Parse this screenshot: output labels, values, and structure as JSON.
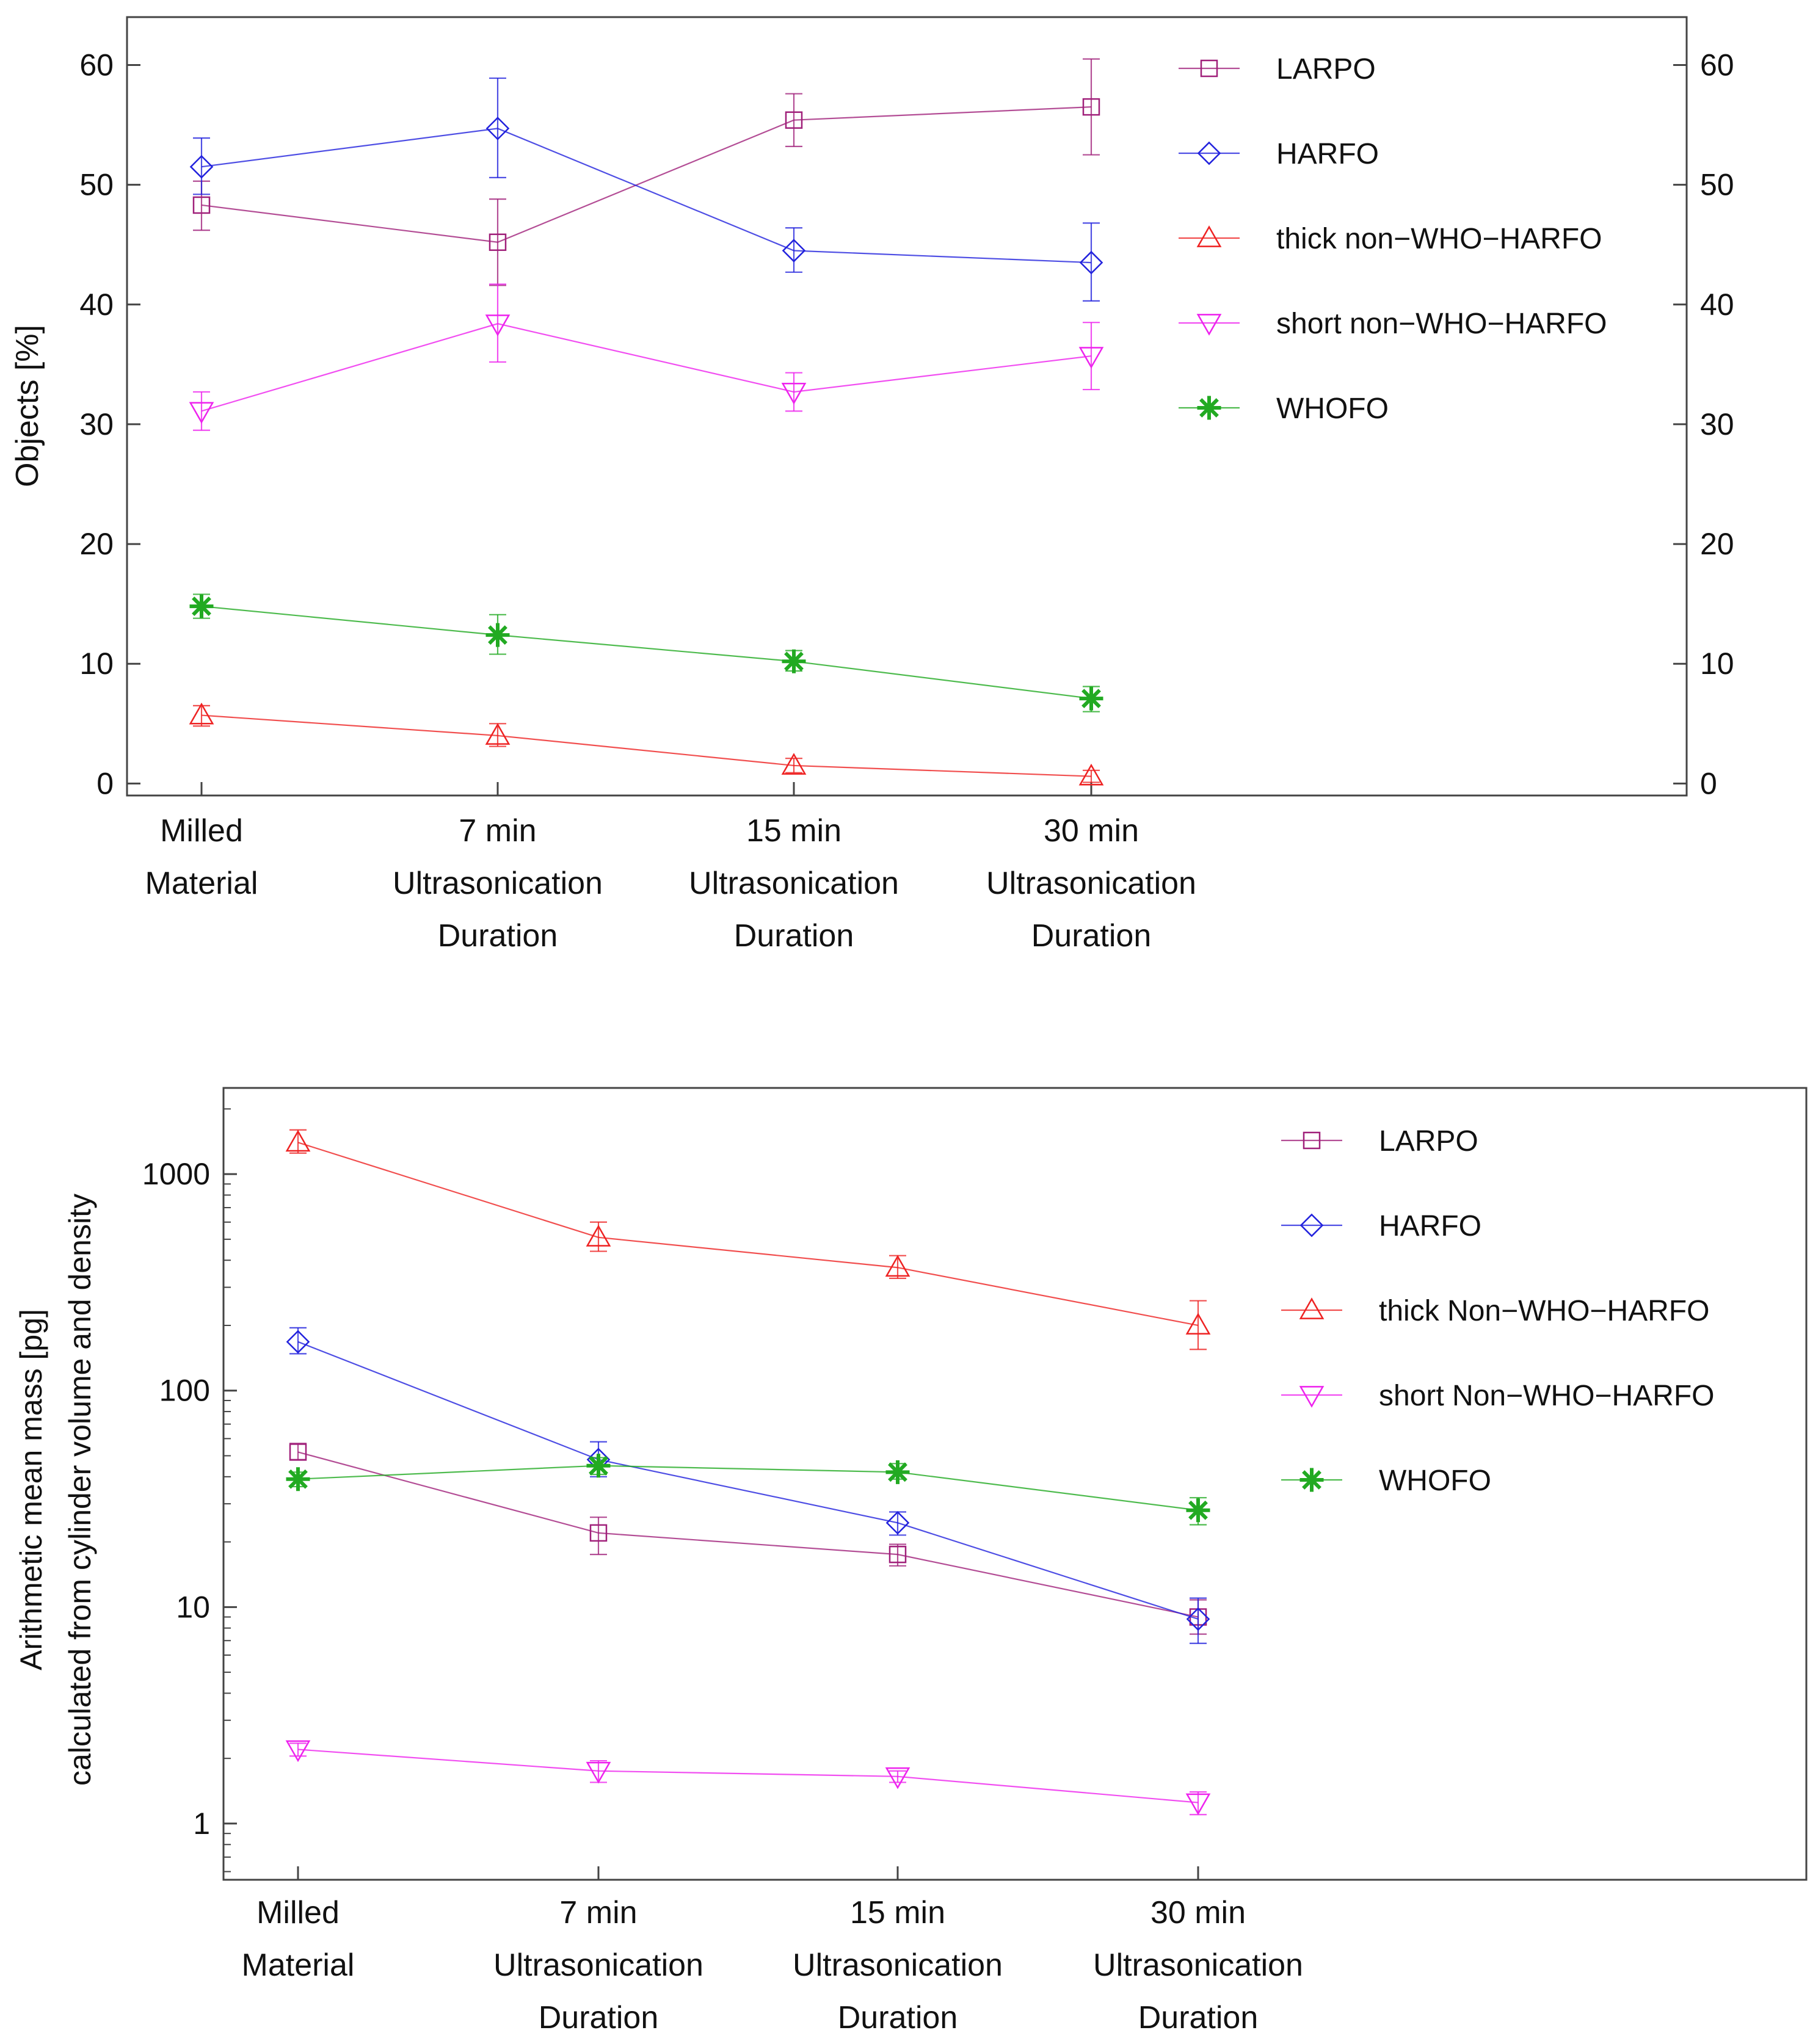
{
  "chart_data": [
    {
      "type": "line",
      "yscale": "linear",
      "ylabel": "Objects [%]",
      "xlabel": "",
      "ylim": [
        -1,
        64
      ],
      "yticks": [
        0,
        10,
        20,
        30,
        40,
        50,
        60
      ],
      "grid": false,
      "legend_position": "top-right",
      "categories": [
        [
          "Milled",
          "Material"
        ],
        [
          "7 min",
          "Ultrasonication",
          "Duration"
        ],
        [
          "15 min",
          "Ultrasonication",
          "Duration"
        ],
        [
          "30 min",
          "Ultrasonication",
          "Duration"
        ]
      ],
      "series": [
        {
          "name": "LARPO",
          "marker": "square",
          "color": "#a0207a",
          "values": [
            48.3,
            45.2,
            55.4,
            56.5
          ],
          "err_low": [
            46.2,
            41.6,
            53.2,
            52.5
          ],
          "err_high": [
            50.3,
            48.8,
            57.6,
            60.5
          ]
        },
        {
          "name": "HARFO",
          "marker": "diamond",
          "color": "#2222dd",
          "values": [
            51.5,
            54.7,
            44.5,
            43.5
          ],
          "err_low": [
            49.2,
            50.6,
            42.7,
            40.3
          ],
          "err_high": [
            53.9,
            58.9,
            46.4,
            46.8
          ]
        },
        {
          "name": "thick non−WHO−HARFO",
          "marker": "triangle-up",
          "color": "#ee2222",
          "values": [
            5.7,
            4.0,
            1.5,
            0.6
          ],
          "err_low": [
            4.8,
            3.1,
            0.9,
            0.1
          ],
          "err_high": [
            6.5,
            5.0,
            2.1,
            1.1
          ]
        },
        {
          "name": "short non−WHO−HARFO",
          "marker": "triangle-down",
          "color": "#ee22ee",
          "values": [
            31.1,
            38.4,
            32.7,
            35.7
          ],
          "err_low": [
            29.5,
            35.2,
            31.1,
            32.9
          ],
          "err_high": [
            32.7,
            41.7,
            34.3,
            38.5
          ]
        },
        {
          "name": "WHOFO",
          "marker": "star",
          "color": "#22aa22",
          "values": [
            14.8,
            12.4,
            10.2,
            7.1
          ],
          "err_low": [
            13.8,
            10.8,
            9.4,
            6.0
          ],
          "err_high": [
            15.8,
            14.1,
            11.1,
            8.1
          ]
        }
      ]
    },
    {
      "type": "line",
      "yscale": "log",
      "ylabel": [
        "Arithmetic mean mass [pg]",
        "calculated from cylinder volume and density"
      ],
      "xlabel": "",
      "ylim": [
        0.55,
        2500
      ],
      "yticks": [
        1,
        10,
        100,
        1000
      ],
      "grid": false,
      "legend_position": "top-right",
      "categories": [
        [
          "Milled",
          "Material"
        ],
        [
          "7 min",
          "Ultrasonication",
          "Duration"
        ],
        [
          "15 min",
          "Ultrasonication",
          "Duration"
        ],
        [
          "30 min",
          "Ultrasonication",
          "Duration"
        ]
      ],
      "series": [
        {
          "name": "LARPO",
          "marker": "square",
          "color": "#a0207a",
          "values": [
            52,
            22,
            17.5,
            9
          ],
          "err_low": [
            48,
            17.5,
            15.5,
            7.5
          ],
          "err_high": [
            57,
            26,
            19.5,
            10.8
          ]
        },
        {
          "name": "HARFO",
          "marker": "diamond",
          "color": "#2222dd",
          "values": [
            168,
            48,
            24.5,
            8.8
          ],
          "err_low": [
            148,
            40,
            21.5,
            6.8
          ],
          "err_high": [
            195,
            58,
            27.5,
            11
          ]
        },
        {
          "name": "thick Non−WHO−HARFO",
          "marker": "triangle-up",
          "color": "#ee2222",
          "values": [
            1400,
            510,
            370,
            200
          ],
          "err_low": [
            1250,
            440,
            330,
            155
          ],
          "err_high": [
            1600,
            600,
            420,
            260
          ]
        },
        {
          "name": "short Non−WHO−HARFO",
          "marker": "triangle-down",
          "color": "#ee22ee",
          "values": [
            2.2,
            1.75,
            1.65,
            1.25
          ],
          "err_low": [
            2.05,
            1.55,
            1.55,
            1.1
          ],
          "err_high": [
            2.35,
            1.95,
            1.75,
            1.4
          ]
        },
        {
          "name": "WHOFO",
          "marker": "star",
          "color": "#22aa22",
          "values": [
            39,
            45,
            42,
            28
          ],
          "err_low": [
            36,
            41,
            39,
            24
          ],
          "err_high": [
            42,
            49,
            46,
            32
          ]
        }
      ]
    }
  ]
}
